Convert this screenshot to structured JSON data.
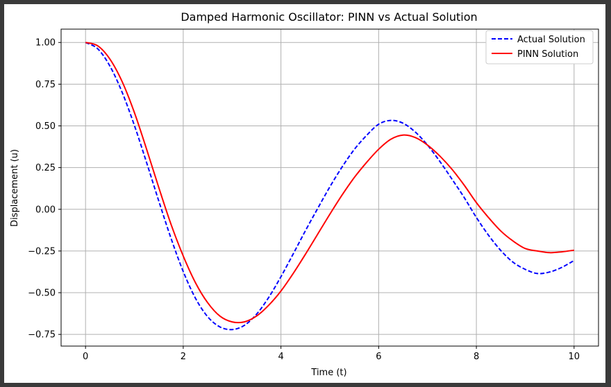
{
  "chart_data": {
    "type": "line",
    "title": "Damped Harmonic Oscillator: PINN vs Actual Solution",
    "xlabel": "Time (t)",
    "ylabel": "Displacement (u)",
    "xlim": [
      -0.5,
      10.5
    ],
    "ylim": [
      -0.82,
      1.08
    ],
    "xticks": [
      0,
      2,
      4,
      6,
      8,
      10
    ],
    "xtick_labels": [
      "0",
      "2",
      "4",
      "6",
      "8",
      "10"
    ],
    "yticks": [
      1.0,
      0.75,
      0.5,
      0.25,
      0.0,
      -0.25,
      -0.5,
      -0.75
    ],
    "ytick_labels": [
      "1.00",
      "0.75",
      "0.50",
      "0.25",
      "0.00",
      "−0.25",
      "−0.50",
      "−0.75"
    ],
    "grid": true,
    "legend_position": "top-right",
    "series": [
      {
        "name": "Actual Solution",
        "color": "#0000ff",
        "style": "dashed",
        "x": [
          0,
          0.25,
          0.5,
          0.75,
          1.0,
          1.25,
          1.5,
          1.75,
          2.0,
          2.25,
          2.5,
          2.75,
          3.0,
          3.25,
          3.5,
          3.75,
          4.0,
          4.25,
          4.5,
          4.75,
          5.0,
          5.25,
          5.5,
          5.75,
          6.0,
          6.25,
          6.5,
          6.75,
          7.0,
          7.25,
          7.5,
          7.75,
          8.0,
          8.25,
          8.5,
          8.75,
          9.0,
          9.25,
          9.5,
          9.75,
          10.0
        ],
        "y": [
          1.0,
          0.962,
          0.858,
          0.701,
          0.503,
          0.28,
          0.049,
          -0.174,
          -0.373,
          -0.533,
          -0.644,
          -0.705,
          -0.721,
          -0.696,
          -0.629,
          -0.528,
          -0.404,
          -0.268,
          -0.129,
          0.004,
          0.134,
          0.253,
          0.358,
          0.442,
          0.51,
          0.533,
          0.516,
          0.463,
          0.385,
          0.288,
          0.181,
          0.071,
          -0.049,
          -0.156,
          -0.247,
          -0.317,
          -0.36,
          -0.385,
          -0.376,
          -0.348,
          -0.307
        ]
      },
      {
        "name": "PINN Solution",
        "color": "#ff0000",
        "style": "solid",
        "x": [
          0,
          0.25,
          0.5,
          0.75,
          1.0,
          1.25,
          1.5,
          1.75,
          2.0,
          2.25,
          2.5,
          2.75,
          3.0,
          3.25,
          3.5,
          3.75,
          4.0,
          4.25,
          4.5,
          4.75,
          5.0,
          5.25,
          5.5,
          5.75,
          6.0,
          6.25,
          6.5,
          6.75,
          7.0,
          7.25,
          7.5,
          7.75,
          8.0,
          8.25,
          8.5,
          8.75,
          9.0,
          9.25,
          9.5,
          9.75,
          10.0
        ],
        "y": [
          1.0,
          0.98,
          0.9,
          0.765,
          0.58,
          0.36,
          0.13,
          -0.09,
          -0.28,
          -0.44,
          -0.56,
          -0.64,
          -0.675,
          -0.675,
          -0.64,
          -0.575,
          -0.49,
          -0.385,
          -0.27,
          -0.15,
          -0.03,
          0.085,
          0.19,
          0.28,
          0.36,
          0.42,
          0.445,
          0.43,
          0.385,
          0.32,
          0.24,
          0.145,
          0.04,
          -0.05,
          -0.13,
          -0.19,
          -0.235,
          -0.25,
          -0.26,
          -0.255,
          -0.245
        ]
      }
    ]
  }
}
